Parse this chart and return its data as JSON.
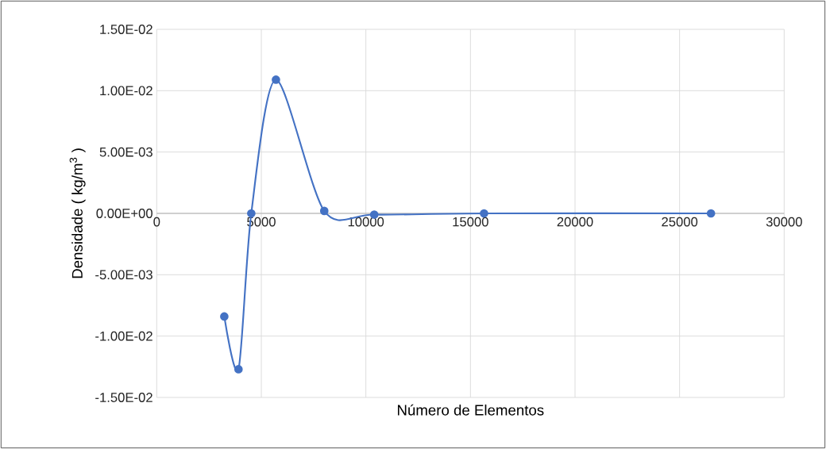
{
  "chart_data": {
    "type": "line",
    "xlabel": "Número de Elementos",
    "ylabel": "Densidade ( kg/m$^{3}$ )",
    "x": [
      3230,
      3910,
      4520,
      5700,
      8010,
      10400,
      15650,
      26500
    ],
    "series": [
      {
        "color": "#4472c4",
        "values": [
          -0.0084,
          -0.0127,
          0.0,
          0.0109,
          0.0002,
          -0.0001,
          0.0,
          0.0
        ]
      }
    ],
    "xlim": [
      0,
      30000
    ],
    "xticks": [
      0,
      5000,
      10000,
      15000,
      20000,
      25000,
      30000
    ],
    "ylim": [
      -0.015,
      0.015
    ],
    "yticks": [
      {
        "value": -0.015,
        "label": "-1.50E-02"
      },
      {
        "value": -0.01,
        "label": "-1.00E-02"
      },
      {
        "value": -0.005,
        "label": "-5.00E-03"
      },
      {
        "value": 0,
        "label": "0.00E+00"
      },
      {
        "value": 0.005,
        "label": "5.00E-03"
      },
      {
        "value": 0.01,
        "label": "1.00E-02"
      },
      {
        "value": 0.015,
        "label": "1.50E-02"
      }
    ],
    "grid": true,
    "marker": "circle",
    "line_style": "solid"
  }
}
